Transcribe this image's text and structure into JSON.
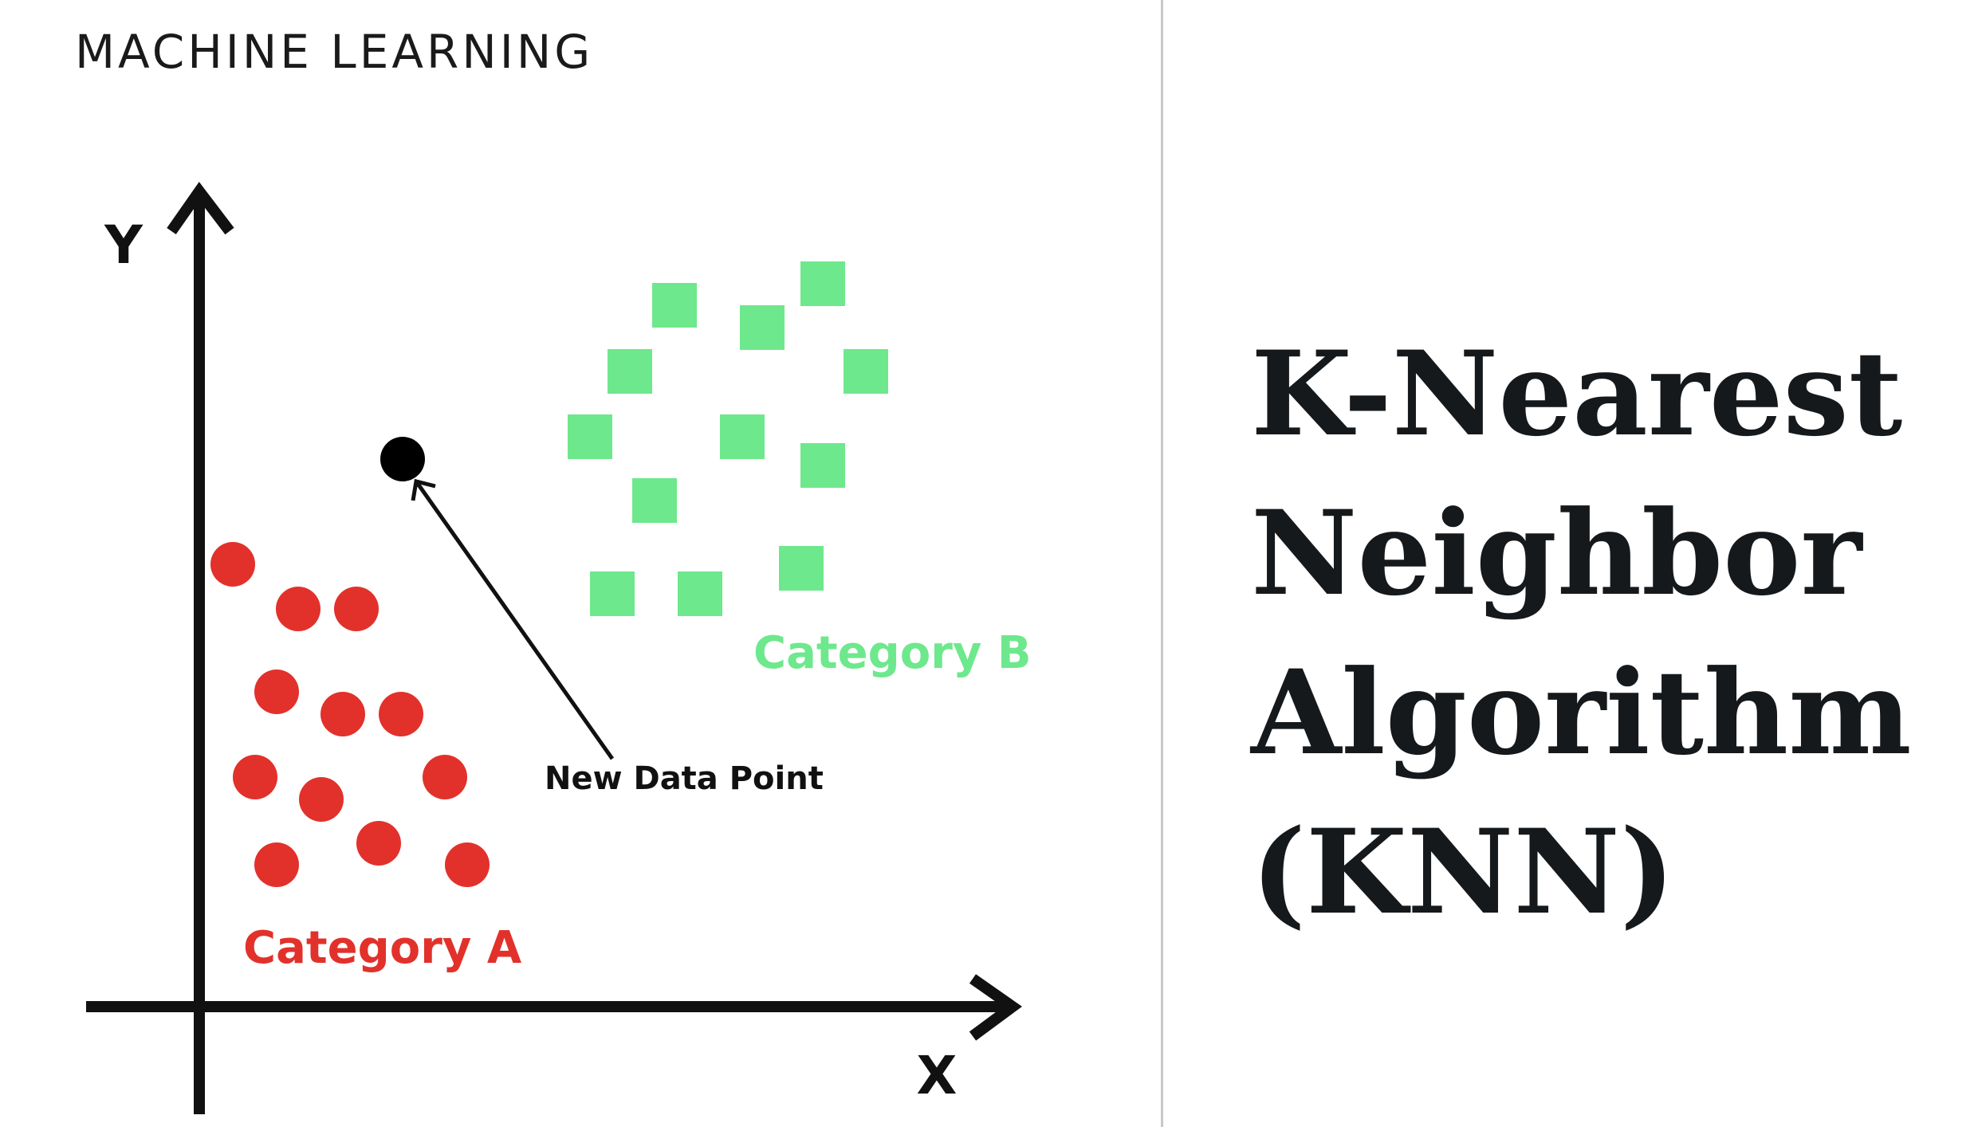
{
  "header": {
    "label": "MACHINE LEARNING"
  },
  "diagram": {
    "axis_y_label": "Y",
    "axis_x_label": "X",
    "new_point_label": "New Data Point",
    "category_a_label": "Category A",
    "category_b_label": "Category B",
    "colors": {
      "category_a": "#e2312b",
      "category_b": "#6ee88c",
      "axis": "#111111",
      "new_point": "#000000"
    }
  },
  "title": {
    "line1": "K-Nearest",
    "line2": "Neighbor",
    "line3": "Algorithm",
    "line4": "(KNN)"
  }
}
